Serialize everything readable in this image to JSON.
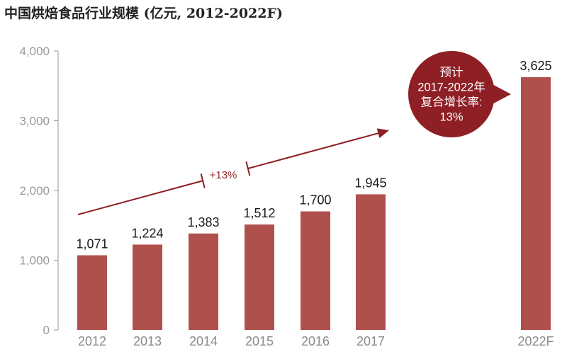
{
  "title": "中国烘焙食品行业规模 (亿元, 2012-2022F)",
  "colors": {
    "bar": "#b0504c",
    "accent": "#8e1f24",
    "axis": "#9a9a9a"
  },
  "chart_data": {
    "type": "bar",
    "title": "中国烘焙食品行业规模 (亿元, 2012-2022F)",
    "categories": [
      "2012",
      "2013",
      "2014",
      "2015",
      "2016",
      "2017",
      "2022F"
    ],
    "values": [
      1071,
      1224,
      1383,
      1512,
      1700,
      1945,
      3625
    ],
    "value_labels": [
      "1,071",
      "1,224",
      "1,383",
      "1,512",
      "1,700",
      "1,945",
      "3,625"
    ],
    "ylim": [
      0,
      4000
    ],
    "yticks": [
      0,
      1000,
      2000,
      3000,
      4000
    ],
    "ytick_labels": [
      "0",
      "1,000",
      "2,000",
      "3,000",
      "4,000"
    ],
    "xlabel": "",
    "ylabel": "",
    "grid": false,
    "annotations": {
      "growth_label": "+13%",
      "cagr_lines": [
        "预计",
        "2017-2022年",
        "复合增长率:",
        "13%"
      ]
    }
  }
}
